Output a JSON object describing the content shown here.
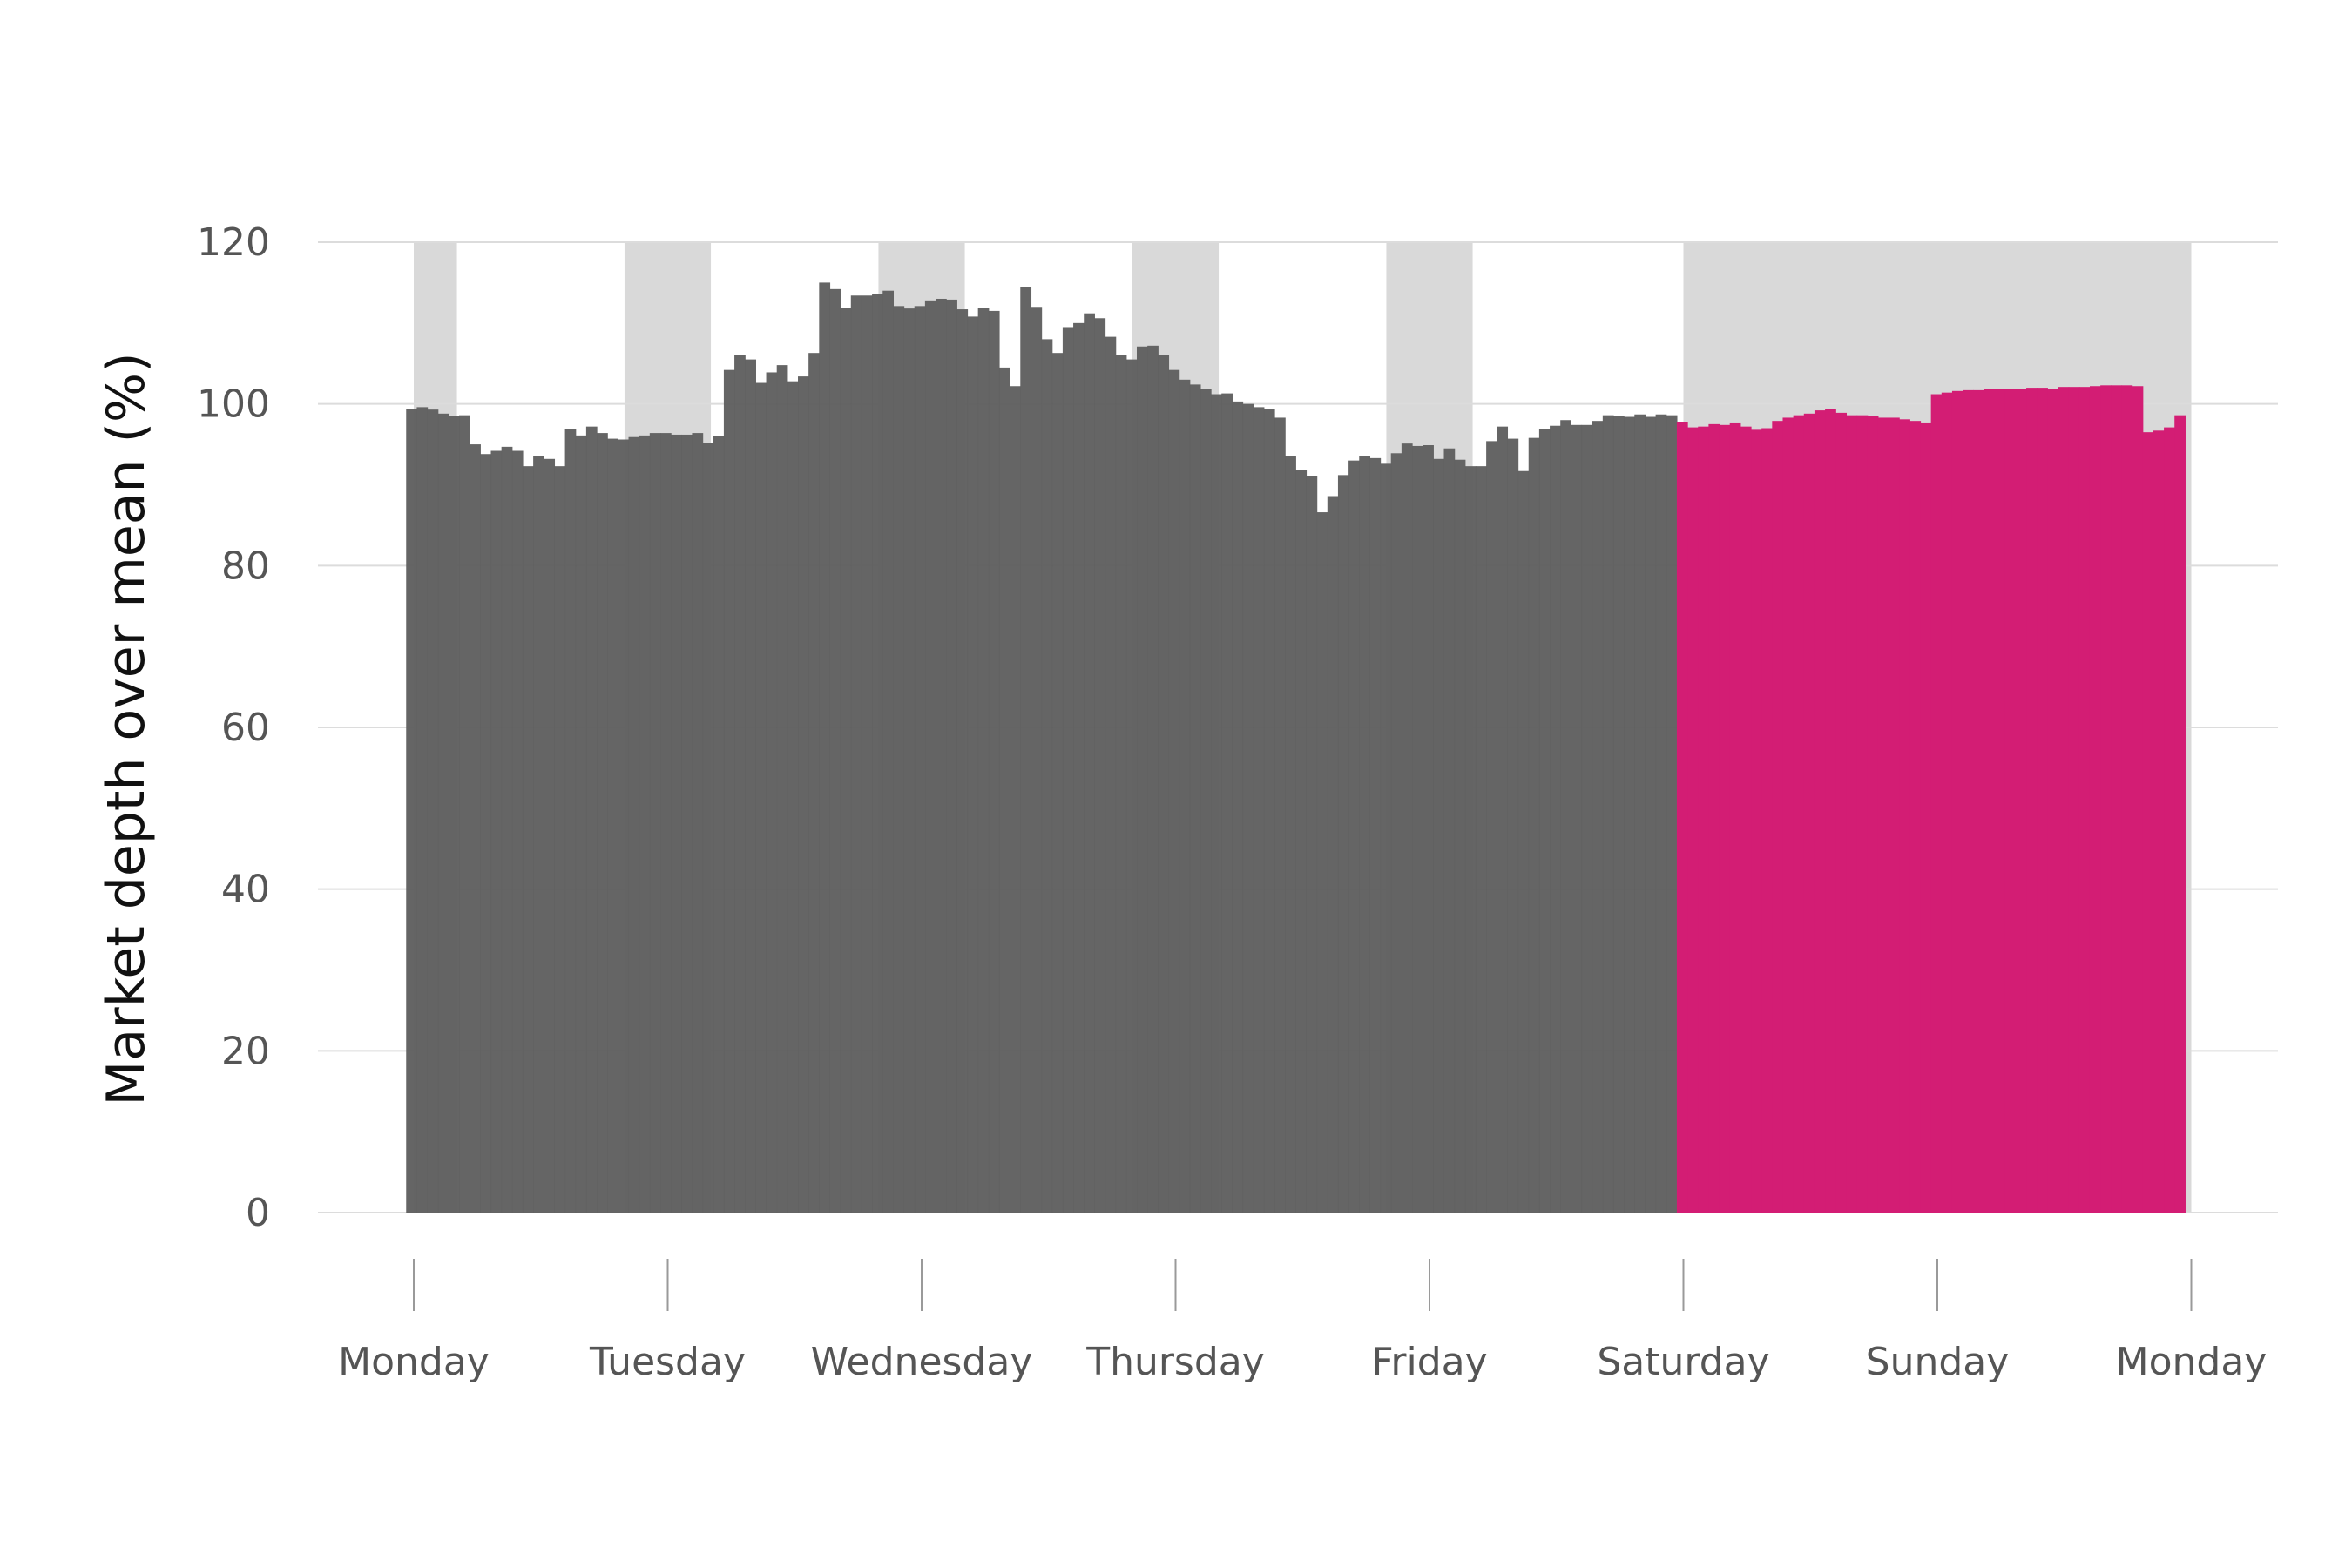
{
  "chart_data": {
    "type": "bar",
    "ylabel": "Market depth over mean (%)",
    "ylim": [
      0,
      120
    ],
    "yticks": [
      0,
      20,
      40,
      60,
      80,
      100,
      120
    ],
    "x_range_days": [
      -0.02,
      7.2
    ],
    "day_labels": [
      "Monday",
      "Tuesday",
      "Wednesday",
      "Thursday",
      "Friday",
      "Saturday",
      "Sunday",
      "Monday"
    ],
    "grid": "horizontal",
    "colors": {
      "weekday": "#606060",
      "weekend": "#d31d74",
      "shade": "#d9d9d9",
      "grid": "#dcdcdc"
    },
    "shaded_day_ranges": [
      [
        0,
        0.17
      ],
      [
        0.83,
        1.17
      ],
      [
        1.83,
        2.17
      ],
      [
        2.83,
        3.17
      ],
      [
        3.83,
        4.17
      ],
      [
        5.0,
        7.0
      ]
    ],
    "bar_start_day": -0.03,
    "bar_step_days": 0.0417,
    "weekend_start_index": 120,
    "values": [
      99.4,
      99.6,
      99.3,
      98.8,
      98.5,
      98.6,
      95.0,
      93.8,
      94.2,
      94.7,
      94.2,
      92.3,
      93.5,
      93.2,
      92.3,
      96.9,
      96.1,
      97.2,
      96.4,
      95.7,
      95.6,
      95.9,
      96.1,
      96.4,
      96.4,
      96.2,
      96.2,
      96.4,
      95.2,
      96.0,
      104.2,
      106.0,
      105.5,
      102.6,
      103.9,
      104.8,
      102.8,
      103.4,
      106.3,
      115.0,
      114.2,
      111.9,
      113.4,
      113.4,
      113.6,
      114.0,
      112.1,
      111.8,
      112.1,
      112.8,
      113.0,
      112.9,
      111.7,
      110.8,
      111.9,
      111.5,
      104.5,
      102.2,
      114.4,
      112.0,
      108.0,
      106.3,
      109.5,
      110.0,
      111.2,
      110.6,
      108.3,
      106.0,
      105.5,
      107.1,
      107.2,
      106.0,
      104.2,
      103.0,
      102.4,
      101.8,
      101.2,
      101.3,
      100.3,
      100.0,
      99.6,
      99.4,
      98.3,
      93.5,
      91.8,
      91.1,
      86.6,
      88.6,
      91.2,
      93.0,
      93.5,
      93.3,
      92.6,
      93.9,
      95.1,
      94.8,
      94.9,
      93.2,
      94.5,
      93.1,
      92.3,
      92.3,
      95.4,
      97.2,
      95.7,
      91.7,
      95.8,
      96.9,
      97.3,
      98.0,
      97.4,
      97.4,
      97.9,
      98.6,
      98.5,
      98.4,
      98.7,
      98.4,
      98.7,
      98.6,
      97.8,
      97.1,
      97.2,
      97.5,
      97.4,
      97.6,
      97.2,
      96.8,
      97.0,
      97.9,
      98.3,
      98.6,
      98.8,
      99.2,
      99.4,
      98.9,
      98.6,
      98.6,
      98.5,
      98.3,
      98.3,
      98.1,
      97.9,
      97.6,
      101.2,
      101.4,
      101.6,
      101.7,
      101.7,
      101.8,
      101.8,
      101.9,
      101.8,
      102.0,
      102.0,
      101.9,
      102.1,
      102.1,
      102.1,
      102.2,
      102.3,
      102.3,
      102.3,
      102.2,
      96.5,
      96.7,
      97.1,
      98.6
    ]
  }
}
